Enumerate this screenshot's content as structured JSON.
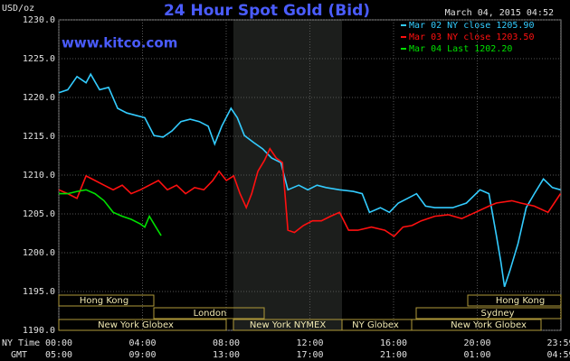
{
  "chart_data": {
    "type": "line",
    "title": "24 Hour Spot Gold (Bid)",
    "site": "www.kitco.com",
    "timestamp": "March 04, 2015 04:52",
    "y_label": "USD/oz",
    "x_label": "NY Time",
    "x2_label": "GMT",
    "xlim": [
      0,
      24
    ],
    "xticks": [
      {
        "value": 0,
        "label": "00:00"
      },
      {
        "value": 4,
        "label": "04:00"
      },
      {
        "value": 8,
        "label": "08:00"
      },
      {
        "value": 12,
        "label": "12:00"
      },
      {
        "value": 16,
        "label": "16:00"
      },
      {
        "value": 20,
        "label": "20:00"
      },
      {
        "value": 23.98,
        "label": "23:59"
      }
    ],
    "x2ticks": [
      "05:00",
      "09:00",
      "13:00",
      "17:00",
      "21:00",
      "01:00",
      "04:59"
    ],
    "ylim": [
      1190,
      1230
    ],
    "yticks": [
      {
        "value": 1190,
        "label": "1190.0"
      },
      {
        "value": 1195,
        "label": "1195.0"
      },
      {
        "value": 1200,
        "label": "1200.0"
      },
      {
        "value": 1205,
        "label": "1205.0"
      },
      {
        "value": 1210,
        "label": "1210.0"
      },
      {
        "value": 1215,
        "label": "1215.0"
      },
      {
        "value": 1220,
        "label": "1220.0"
      },
      {
        "value": 1225,
        "label": "1225.0"
      },
      {
        "value": 1230,
        "label": "1230.0"
      }
    ],
    "grid": true,
    "sessions": [
      "Hong Kong",
      "Hong Kong",
      "London",
      "Sydney",
      "New York Globex",
      "New York NYMEX",
      "NY Globex",
      "New York Globex"
    ],
    "series": [
      {
        "name": "Mar 02 NY close 1205.90",
        "color": "#33ccff",
        "x": [
          0,
          0.43,
          0.87,
          1.3,
          1.52,
          1.95,
          2.38,
          2.81,
          3.25,
          3.68,
          4.11,
          4.55,
          4.98,
          5.41,
          5.84,
          6.28,
          6.71,
          7.14,
          7.45,
          7.79,
          8.23,
          8.53,
          8.87,
          9.31,
          9.74,
          10.17,
          10.61,
          10.95,
          11.47,
          11.9,
          12.34,
          12.77,
          13.42,
          14.07,
          14.5,
          14.85,
          15.37,
          15.8,
          16.23,
          16.67,
          17.1,
          17.53,
          17.97,
          18.83,
          19.48,
          20.13,
          20.56,
          20.91,
          21.13,
          21.3,
          21.56,
          21.95,
          22.34,
          22.73,
          23.16,
          23.59,
          23.98
        ],
        "values": [
          1220.6,
          1221,
          1222.7,
          1221.9,
          1223,
          1221,
          1221.3,
          1218.6,
          1218,
          1217.7,
          1217.4,
          1215.1,
          1214.9,
          1215.7,
          1216.9,
          1217.2,
          1216.9,
          1216.3,
          1214,
          1216.3,
          1218.6,
          1217.4,
          1215.1,
          1214.2,
          1213.4,
          1212.2,
          1211.6,
          1208.1,
          1208.7,
          1208.1,
          1208.7,
          1208.4,
          1208.1,
          1207.9,
          1207.6,
          1205.2,
          1205.8,
          1205.2,
          1206.4,
          1207,
          1207.6,
          1206,
          1205.8,
          1205.8,
          1206.4,
          1208.1,
          1207.6,
          1202.3,
          1198.8,
          1195.6,
          1197.7,
          1201.2,
          1205.8,
          1207.6,
          1209.5,
          1208.4,
          1208.1
        ]
      },
      {
        "name": "Mar 03 NY close 1203.50",
        "color": "#ff1010",
        "x": [
          0,
          0.43,
          0.87,
          1.3,
          1.73,
          2.16,
          2.6,
          3.03,
          3.46,
          3.9,
          4.33,
          4.76,
          5.19,
          5.63,
          6.06,
          6.49,
          6.93,
          7.36,
          7.66,
          8.01,
          8.36,
          8.66,
          8.96,
          9.22,
          9.52,
          9.83,
          10.09,
          10.39,
          10.69,
          10.95,
          11.26,
          11.69,
          12.12,
          12.55,
          12.99,
          13.42,
          13.85,
          14.29,
          14.94,
          15.58,
          16.02,
          16.45,
          16.88,
          17.32,
          17.97,
          18.61,
          19.26,
          19.91,
          20.56,
          20.91,
          21.65,
          22.08,
          22.73,
          23.38,
          23.68,
          23.98
        ],
        "values": [
          1208.1,
          1207.6,
          1207,
          1209.9,
          1209.3,
          1208.7,
          1208.1,
          1208.7,
          1207.6,
          1208.1,
          1208.7,
          1209.3,
          1208.1,
          1208.7,
          1207.6,
          1208.4,
          1208.1,
          1209.3,
          1210.5,
          1209.3,
          1209.9,
          1207.6,
          1205.8,
          1207.6,
          1210.5,
          1211.9,
          1213.4,
          1212.2,
          1211.6,
          1202.9,
          1202.6,
          1203.5,
          1204.1,
          1204.1,
          1204.7,
          1205.2,
          1202.9,
          1202.9,
          1203.3,
          1202.9,
          1202.1,
          1203.3,
          1203.5,
          1204.1,
          1204.7,
          1204.9,
          1204.4,
          1205.2,
          1206,
          1206.4,
          1206.7,
          1206.4,
          1206,
          1205.2,
          1206.4,
          1207.6
        ]
      },
      {
        "name": "Mar 04 Last 1202.20",
        "color": "#00e000",
        "x": [
          0,
          0.43,
          0.87,
          1.3,
          1.73,
          2.16,
          2.6,
          3.03,
          3.46,
          3.9,
          4.11,
          4.33,
          4.55,
          4.89
        ],
        "values": [
          1207.6,
          1207.6,
          1207.9,
          1208.1,
          1207.6,
          1206.7,
          1205.2,
          1204.7,
          1204.3,
          1203.7,
          1203.3,
          1204.7,
          1203.7,
          1202.2
        ]
      }
    ]
  }
}
